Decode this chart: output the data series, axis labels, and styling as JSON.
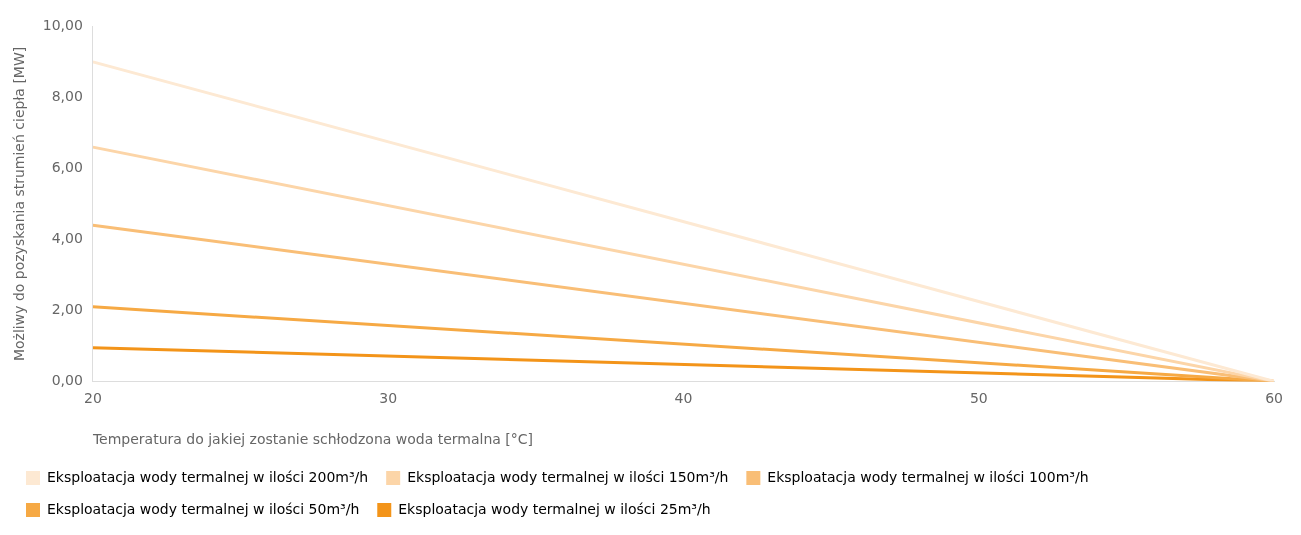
{
  "chart_data": {
    "type": "line",
    "xlabel": "Temperatura do jakiej zostanie schłodzona woda termalna [°C]",
    "ylabel": "Możliwy do pozyskania strumień ciepła [MW]",
    "x": [
      20,
      60
    ],
    "series": [
      {
        "name": "Eksploatacja wody termalnej w ilości 200m³/h",
        "color": "#fde9d3",
        "values": [
          9.0,
          0
        ]
      },
      {
        "name": "Eksploatacja wody termalnej w ilości 150m³/h",
        "color": "#fcd5a8",
        "values": [
          6.6,
          0
        ]
      },
      {
        "name": "Eksploatacja wody termalnej w ilości 100m³/h",
        "color": "#f9be76",
        "values": [
          4.4,
          0
        ]
      },
      {
        "name": "Eksploatacja wody termalnej w ilości 50m³/h",
        "color": "#f6a944",
        "values": [
          2.1,
          0
        ]
      },
      {
        "name": "Eksploatacja wody termalnej w ilości 25m³/h",
        "color": "#f39419",
        "values": [
          0.95,
          0
        ]
      }
    ],
    "xlim": [
      20,
      60
    ],
    "xticks": [
      20,
      30,
      40,
      50,
      60
    ],
    "ylim": [
      0,
      10
    ],
    "yticks": [
      {
        "value": 0,
        "label": "0,00"
      },
      {
        "value": 2,
        "label": "2,00"
      },
      {
        "value": 4,
        "label": "4,00"
      },
      {
        "value": 6,
        "label": "6,00"
      },
      {
        "value": 8,
        "label": "8,00"
      },
      {
        "value": 10,
        "label": "10,00"
      }
    ],
    "grid": false,
    "legend": "bottom",
    "marker": "none",
    "line_style": "solid"
  }
}
